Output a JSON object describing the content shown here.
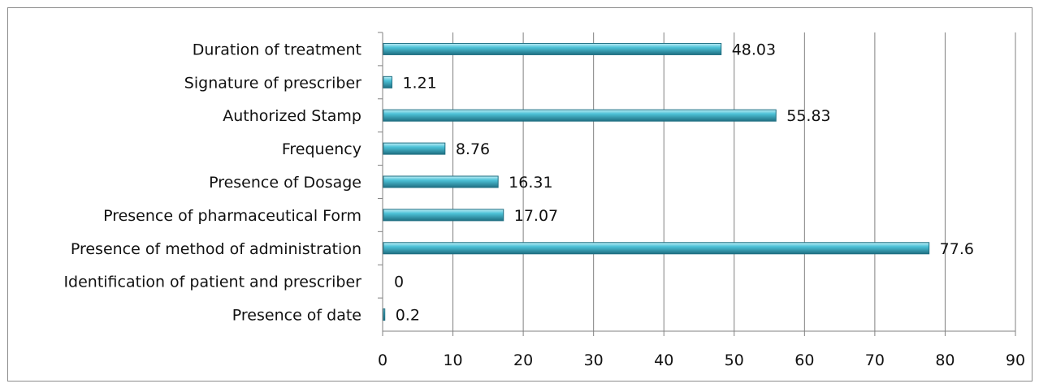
{
  "chart_data": {
    "type": "bar",
    "orientation": "horizontal",
    "categories": [
      "Duration of treatment",
      "Signature of prescriber",
      "Authorized Stamp",
      "Frequency",
      "Presence of Dosage",
      "Presence of pharmaceutical Form",
      "Presence of method of administration",
      "Identification of patient and prescriber",
      "Presence of date"
    ],
    "values": [
      48.03,
      1.21,
      55.83,
      8.76,
      16.31,
      17.07,
      77.6,
      0,
      0.2
    ],
    "value_labels": [
      "48.03",
      "1.21",
      "55.83",
      "8.76",
      "16.31",
      "17.07",
      "77.6",
      "0",
      "0.2"
    ],
    "xlim": [
      0,
      90
    ],
    "x_ticks": [
      "0",
      "10",
      "20",
      "30",
      "40",
      "50",
      "60",
      "70",
      "80",
      "90"
    ],
    "grid": "vertical",
    "legend": "none",
    "colors": {
      "bar_fill": "#4ec3d8",
      "bar_edge": "#1f6f82",
      "bar_highlight": "#bfeef6",
      "grid": "#808080"
    }
  }
}
